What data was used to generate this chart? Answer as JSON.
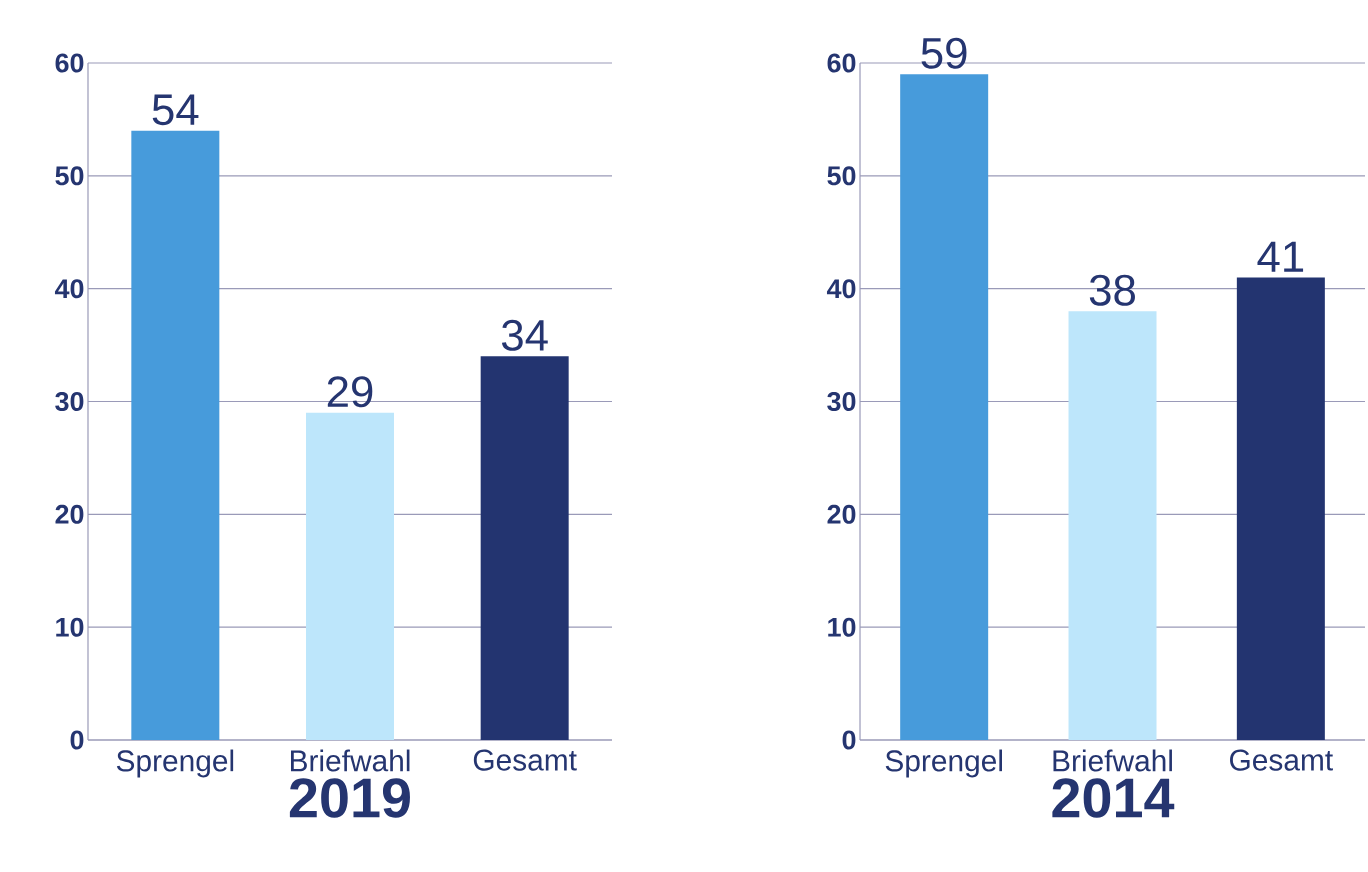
{
  "chart_data": [
    {
      "type": "bar",
      "xlabel": "2019",
      "categories": [
        "Sprengel",
        "Briefwahl",
        "Gesamt"
      ],
      "values": [
        54,
        29,
        34
      ],
      "colors": [
        "#479bdb",
        "#bde6fb",
        "#233470"
      ],
      "ylim": [
        0,
        60
      ],
      "yticks": [
        0,
        10,
        20,
        30,
        40,
        50,
        60
      ],
      "grid": "y",
      "data_labels": true
    },
    {
      "type": "bar",
      "xlabel": "2014",
      "categories": [
        "Sprengel",
        "Briefwahl",
        "Gesamt"
      ],
      "values": [
        59,
        38,
        41
      ],
      "colors": [
        "#479bdb",
        "#bde6fb",
        "#233470"
      ],
      "ylim": [
        0,
        60
      ],
      "yticks": [
        0,
        10,
        20,
        30,
        40,
        50,
        60
      ],
      "grid": "y",
      "data_labels": true
    }
  ]
}
